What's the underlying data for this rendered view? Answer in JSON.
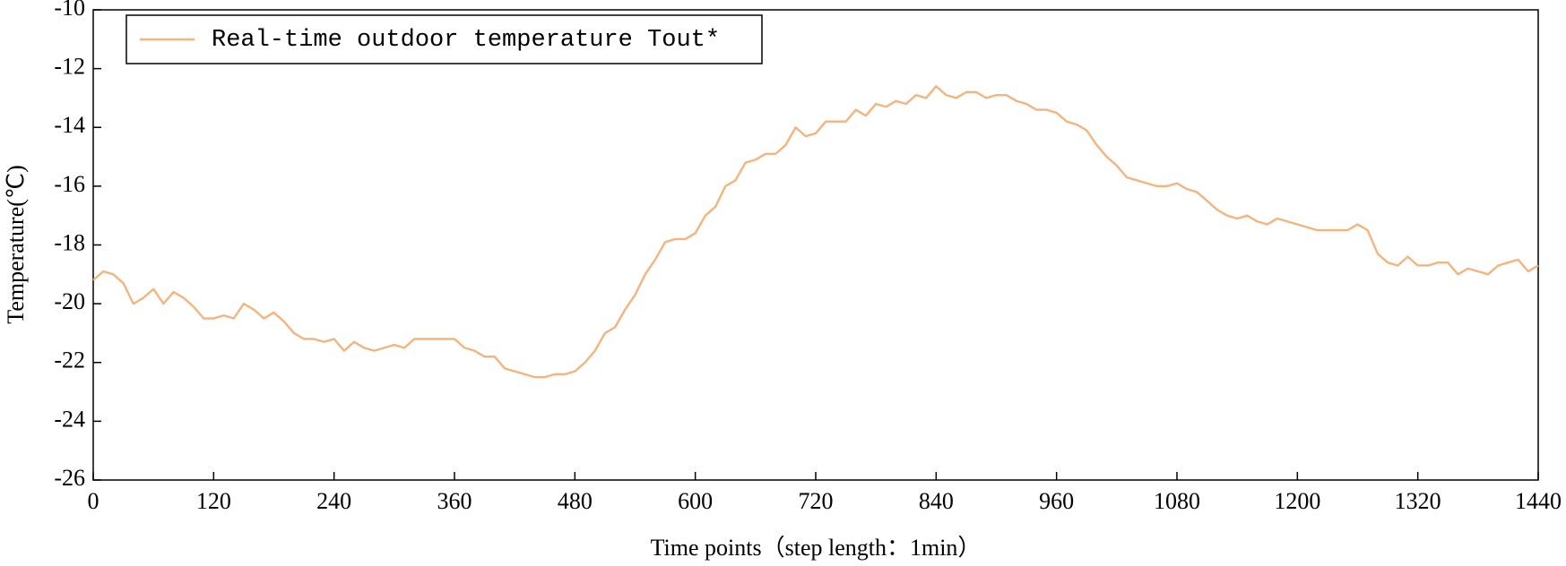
{
  "chart_data": {
    "type": "line",
    "xlabel": "Time points（step length：1min）",
    "ylabel": "Temperature(℃)",
    "x": [
      0,
      10,
      20,
      30,
      40,
      50,
      60,
      70,
      80,
      90,
      100,
      110,
      120,
      130,
      140,
      150,
      160,
      170,
      180,
      190,
      200,
      210,
      220,
      230,
      240,
      250,
      260,
      270,
      280,
      290,
      300,
      310,
      320,
      330,
      340,
      350,
      360,
      370,
      380,
      390,
      400,
      410,
      420,
      430,
      440,
      450,
      460,
      470,
      480,
      490,
      500,
      510,
      520,
      530,
      540,
      550,
      560,
      570,
      580,
      590,
      600,
      610,
      620,
      630,
      640,
      650,
      660,
      670,
      680,
      690,
      700,
      710,
      720,
      730,
      740,
      750,
      760,
      770,
      780,
      790,
      800,
      810,
      820,
      830,
      840,
      850,
      860,
      870,
      880,
      890,
      900,
      910,
      920,
      930,
      940,
      950,
      960,
      970,
      980,
      990,
      1000,
      1010,
      1020,
      1030,
      1040,
      1050,
      1060,
      1070,
      1080,
      1090,
      1100,
      1110,
      1120,
      1130,
      1140,
      1150,
      1160,
      1170,
      1180,
      1190,
      1200,
      1210,
      1220,
      1230,
      1240,
      1250,
      1260,
      1270,
      1280,
      1290,
      1300,
      1310,
      1320,
      1330,
      1340,
      1350,
      1360,
      1370,
      1380,
      1390,
      1400,
      1410,
      1420,
      1430,
      1440
    ],
    "series": [
      {
        "name": "Real-time outdoor temperature Tout*",
        "color": "#f4b47e",
        "values": [
          -19.2,
          -18.9,
          -19.0,
          -19.3,
          -20.0,
          -19.8,
          -19.5,
          -20.0,
          -19.6,
          -19.8,
          -20.1,
          -20.5,
          -20.5,
          -20.4,
          -20.5,
          -20.0,
          -20.2,
          -20.5,
          -20.3,
          -20.6,
          -21.0,
          -21.2,
          -21.2,
          -21.3,
          -21.2,
          -21.6,
          -21.3,
          -21.5,
          -21.6,
          -21.5,
          -21.4,
          -21.5,
          -21.2,
          -21.2,
          -21.2,
          -21.2,
          -21.2,
          -21.5,
          -21.6,
          -21.8,
          -21.8,
          -22.2,
          -22.3,
          -22.4,
          -22.5,
          -22.5,
          -22.4,
          -22.4,
          -22.3,
          -22.0,
          -21.6,
          -21.0,
          -20.8,
          -20.2,
          -19.7,
          -19.0,
          -18.5,
          -17.9,
          -17.8,
          -17.8,
          -17.6,
          -17.0,
          -16.7,
          -16.0,
          -15.8,
          -15.2,
          -15.1,
          -14.9,
          -14.9,
          -14.6,
          -14.0,
          -14.3,
          -14.2,
          -13.8,
          -13.8,
          -13.8,
          -13.4,
          -13.6,
          -13.2,
          -13.3,
          -13.1,
          -13.2,
          -12.9,
          -13.0,
          -12.6,
          -12.9,
          -13.0,
          -12.8,
          -12.8,
          -13.0,
          -12.9,
          -12.9,
          -13.1,
          -13.2,
          -13.4,
          -13.4,
          -13.5,
          -13.8,
          -13.9,
          -14.1,
          -14.6,
          -15.0,
          -15.3,
          -15.7,
          -15.8,
          -15.9,
          -16.0,
          -16.0,
          -15.9,
          -16.1,
          -16.2,
          -16.5,
          -16.8,
          -17.0,
          -17.1,
          -17.0,
          -17.2,
          -17.3,
          -17.1,
          -17.2,
          -17.3,
          -17.4,
          -17.5,
          -17.5,
          -17.5,
          -17.5,
          -17.3,
          -17.5,
          -18.3,
          -18.6,
          -18.7,
          -18.4,
          -18.7,
          -18.7,
          -18.6,
          -18.6,
          -19.0,
          -18.8,
          -18.9,
          -19.0,
          -18.7,
          -18.6,
          -18.5,
          -18.9,
          -18.7
        ]
      }
    ],
    "xlim": [
      0,
      1440
    ],
    "xticks": [
      0,
      120,
      240,
      360,
      480,
      600,
      720,
      840,
      960,
      1080,
      1200,
      1320,
      1440
    ],
    "ylim": [
      -26,
      -10
    ],
    "yticks": [
      -26,
      -24,
      -22,
      -20,
      -18,
      -16,
      -14,
      -12,
      -10
    ],
    "grid": false,
    "legend": "upper left"
  }
}
